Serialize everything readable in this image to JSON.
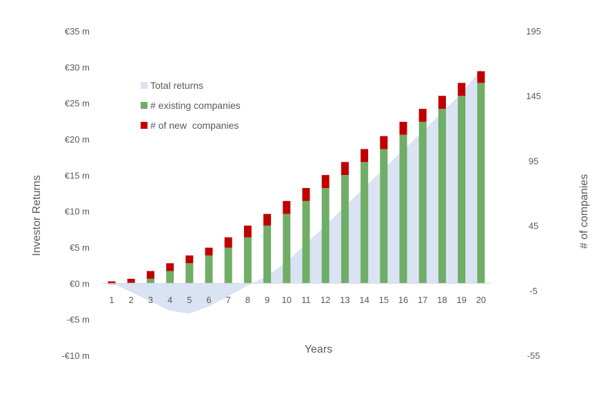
{
  "chart_data": {
    "type": "bar",
    "title": "",
    "xlabel": "Years",
    "ylabel_left": "Investor Returns",
    "ylabel_right": "# of companies",
    "categories": [
      "1",
      "2",
      "3",
      "4",
      "5",
      "6",
      "7",
      "8",
      "9",
      "10",
      "11",
      "12",
      "13",
      "14",
      "15",
      "16",
      "17",
      "18",
      "19",
      "20"
    ],
    "left_axis": {
      "ylim": [
        -10,
        35
      ],
      "ticks": [
        -10,
        -5,
        0,
        5,
        10,
        15,
        20,
        25,
        30,
        35
      ],
      "tick_labels": [
        "-€10 m",
        "-€5 m",
        "€0 m",
        "€5 m",
        "€10 m",
        "€15 m",
        "€20 m",
        "€25 m",
        "€30 m",
        "€35 m"
      ]
    },
    "right_axis": {
      "ylim": [
        -55,
        195
      ],
      "ticks": [
        -55,
        -5,
        45,
        95,
        145,
        195
      ],
      "tick_labels": [
        "-55",
        "-5",
        "45",
        "95",
        "145",
        "195"
      ]
    },
    "series": [
      {
        "name": "Total returns",
        "type": "area",
        "axis": "left",
        "color": "#dae3f3",
        "values": [
          0,
          -1.2,
          -2.5,
          -3.8,
          -4.2,
          -3.2,
          -1.8,
          -0.3,
          1.0,
          3.0,
          5.5,
          8.0,
          10.7,
          13.3,
          15.9,
          18.5,
          21.1,
          23.7,
          26.4,
          29.7
        ]
      },
      {
        "name": "# existing companies",
        "type": "bar",
        "axis": "right",
        "stack": "companies",
        "color": "#70ad67",
        "values": [
          0,
          1,
          4,
          10,
          16,
          22,
          28,
          36,
          45,
          54,
          64,
          74,
          84,
          94,
          104,
          115,
          125,
          135,
          145,
          155
        ]
      },
      {
        "name": "# of new  companies",
        "type": "bar",
        "axis": "right",
        "stack": "companies",
        "color": "#c00000",
        "values": [
          2,
          3,
          6,
          6,
          6,
          6,
          8,
          9,
          9,
          10,
          10,
          10,
          10,
          10,
          10,
          10,
          10,
          10,
          10,
          9
        ]
      }
    ],
    "legend": {
      "placement": "top-left",
      "entries": [
        "Total returns",
        "# existing companies",
        "# of new  companies"
      ]
    },
    "grid": false
  }
}
